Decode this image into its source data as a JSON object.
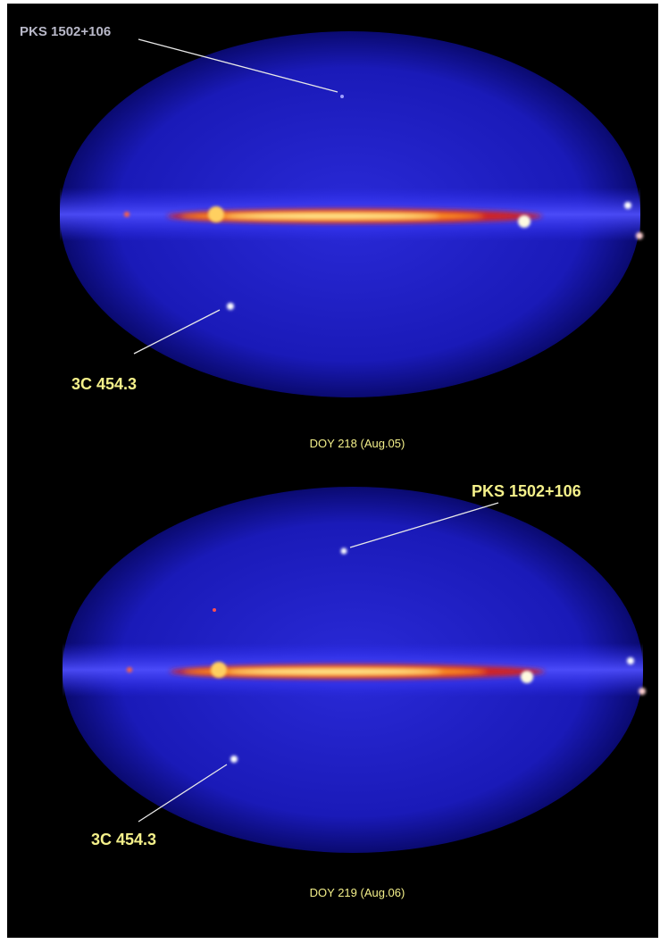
{
  "panels": [
    {
      "source_top": "PKS 1502+106",
      "source_bottom": "3C 454.3",
      "caption": "DOY 218 (Aug.05)"
    },
    {
      "source_top": "PKS 1502+106",
      "source_bottom": "3C 454.3",
      "caption": "DOY 219 (Aug.06)"
    }
  ]
}
